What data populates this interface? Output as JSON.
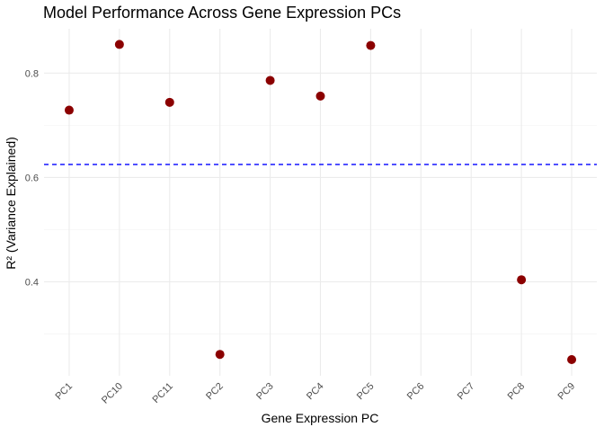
{
  "chart_data": {
    "type": "scatter",
    "title": "Model Performance Across Gene Expression PCs",
    "xlabel": "Gene Expression PC",
    "ylabel": "R² (Variance Explained)",
    "categories": [
      "PC1",
      "PC10",
      "PC11",
      "PC2",
      "PC3",
      "PC4",
      "PC5",
      "PC6",
      "PC7",
      "PC8",
      "PC9"
    ],
    "series": [
      {
        "name": "R²",
        "values": [
          0.729,
          0.855,
          0.744,
          0.261,
          0.786,
          0.756,
          0.853,
          null,
          null,
          0.404,
          0.251
        ]
      }
    ],
    "reference_line": {
      "y": 0.625,
      "style": "dashed"
    },
    "ylim": [
      0.22,
      0.885
    ],
    "y_ticks": [
      0.4,
      0.6,
      0.8
    ],
    "y_tick_labels": [
      "0.4",
      "0.6",
      "0.8"
    ],
    "y_minor_ticks": [
      0.3,
      0.5,
      0.7
    ],
    "grid": true,
    "legend": "none"
  },
  "colors": {
    "point": "#8b0000",
    "reference_line": "#0000ff",
    "background": "#ffffff"
  }
}
